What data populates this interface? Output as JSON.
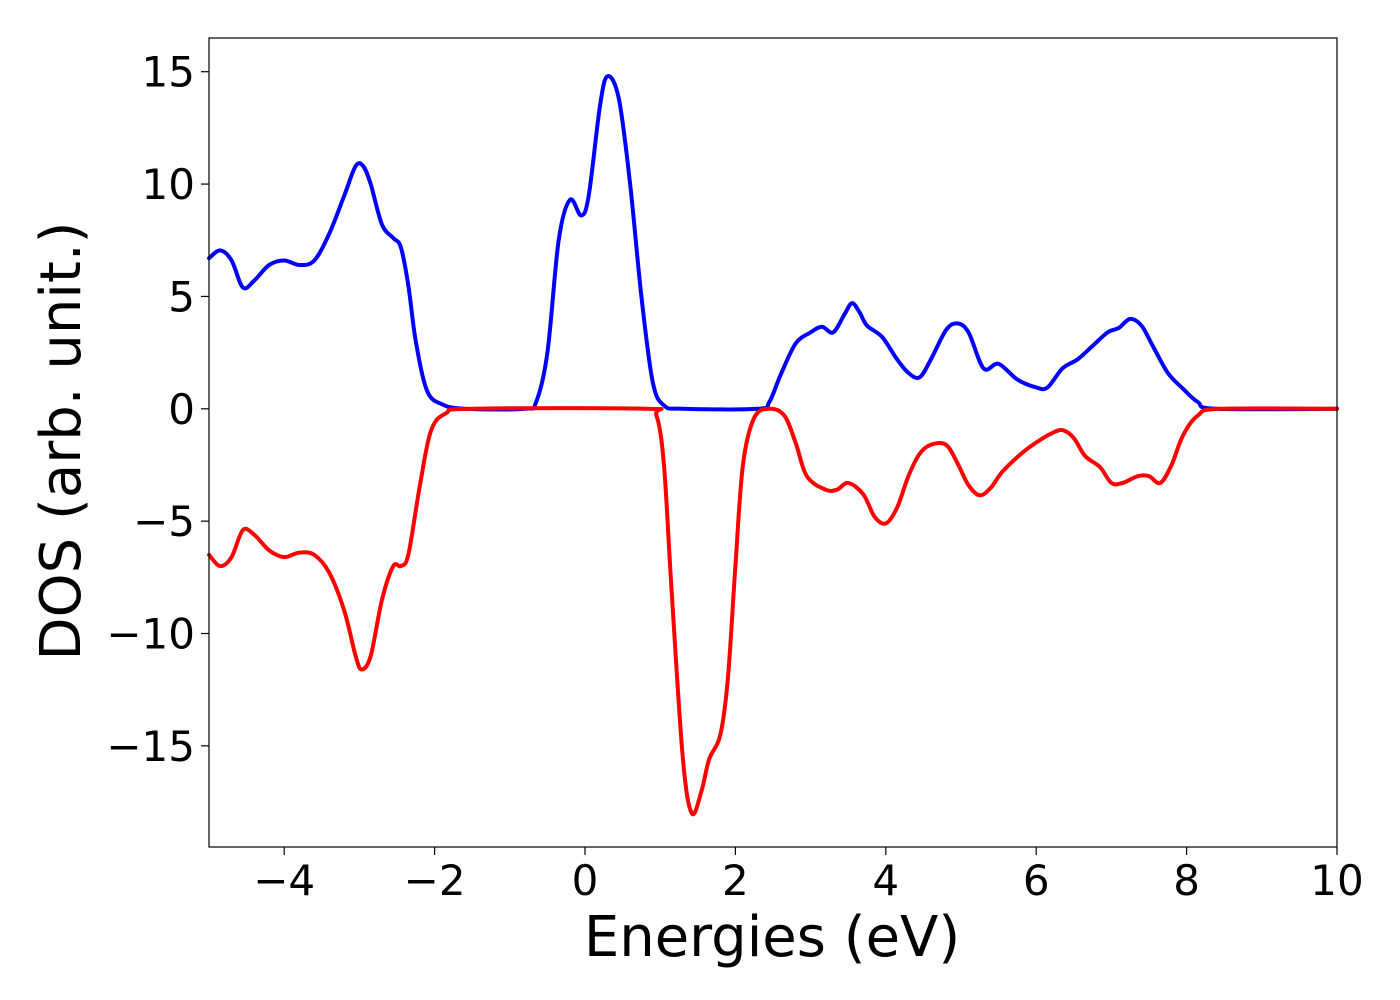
{
  "chart_data": {
    "type": "line",
    "title": "",
    "xlabel": "Energies (eV)",
    "ylabel": "DOS (arb. unit.)",
    "xlim": [
      -5,
      10
    ],
    "ylim": [
      -19.5,
      16.5
    ],
    "grid": false,
    "legend": "none",
    "x_ticks": [
      {
        "value": -4,
        "label": "−4"
      },
      {
        "value": -2,
        "label": "−2"
      },
      {
        "value": 0,
        "label": "0"
      },
      {
        "value": 2,
        "label": "2"
      },
      {
        "value": 4,
        "label": "4"
      },
      {
        "value": 6,
        "label": "6"
      },
      {
        "value": 8,
        "label": "8"
      },
      {
        "value": 10,
        "label": "10"
      }
    ],
    "y_ticks": [
      {
        "value": 15,
        "label": "15"
      },
      {
        "value": 10,
        "label": "10"
      },
      {
        "value": 5,
        "label": "5"
      },
      {
        "value": 0,
        "label": "0"
      },
      {
        "value": -5,
        "label": "−5"
      },
      {
        "value": -10,
        "label": "−10"
      },
      {
        "value": -15,
        "label": "−15"
      }
    ],
    "series": [
      {
        "color": "#0000ff",
        "points": [
          [
            -5.0,
            6.7
          ],
          [
            -4.85,
            7.05
          ],
          [
            -4.7,
            6.6
          ],
          [
            -4.55,
            5.4
          ],
          [
            -4.4,
            5.7
          ],
          [
            -4.2,
            6.4
          ],
          [
            -4.0,
            6.6
          ],
          [
            -3.8,
            6.4
          ],
          [
            -3.6,
            6.6
          ],
          [
            -3.4,
            7.8
          ],
          [
            -3.2,
            9.5
          ],
          [
            -3.05,
            10.8
          ],
          [
            -2.95,
            10.8
          ],
          [
            -2.85,
            10.0
          ],
          [
            -2.7,
            8.2
          ],
          [
            -2.55,
            7.6
          ],
          [
            -2.45,
            7.2
          ],
          [
            -2.35,
            5.5
          ],
          [
            -2.25,
            3.0
          ],
          [
            -2.1,
            0.8
          ],
          [
            -1.9,
            0.2
          ],
          [
            -1.6,
            0.0
          ],
          [
            -0.8,
            0.0
          ],
          [
            -0.65,
            0.3
          ],
          [
            -0.5,
            2.5
          ],
          [
            -0.35,
            7.5
          ],
          [
            -0.2,
            9.3
          ],
          [
            -0.05,
            8.6
          ],
          [
            0.05,
            9.5
          ],
          [
            0.2,
            13.5
          ],
          [
            0.3,
            14.8
          ],
          [
            0.45,
            13.8
          ],
          [
            0.6,
            10.0
          ],
          [
            0.75,
            5.0
          ],
          [
            0.9,
            1.2
          ],
          [
            1.05,
            0.15
          ],
          [
            1.3,
            0.0
          ],
          [
            2.3,
            0.0
          ],
          [
            2.45,
            0.3
          ],
          [
            2.6,
            1.5
          ],
          [
            2.8,
            2.9
          ],
          [
            3.0,
            3.4
          ],
          [
            3.15,
            3.65
          ],
          [
            3.3,
            3.4
          ],
          [
            3.45,
            4.2
          ],
          [
            3.55,
            4.7
          ],
          [
            3.65,
            4.3
          ],
          [
            3.75,
            3.7
          ],
          [
            3.95,
            3.2
          ],
          [
            4.15,
            2.2
          ],
          [
            4.3,
            1.6
          ],
          [
            4.45,
            1.4
          ],
          [
            4.6,
            2.2
          ],
          [
            4.8,
            3.5
          ],
          [
            4.95,
            3.8
          ],
          [
            5.1,
            3.4
          ],
          [
            5.3,
            1.8
          ],
          [
            5.5,
            2.0
          ],
          [
            5.75,
            1.3
          ],
          [
            6.0,
            0.95
          ],
          [
            6.15,
            0.95
          ],
          [
            6.35,
            1.8
          ],
          [
            6.55,
            2.2
          ],
          [
            6.75,
            2.8
          ],
          [
            6.95,
            3.4
          ],
          [
            7.1,
            3.6
          ],
          [
            7.25,
            4.0
          ],
          [
            7.4,
            3.7
          ],
          [
            7.55,
            2.8
          ],
          [
            7.75,
            1.6
          ],
          [
            7.95,
            0.9
          ],
          [
            8.15,
            0.3
          ],
          [
            8.4,
            0.0
          ],
          [
            10.0,
            0.0
          ]
        ]
      },
      {
        "color": "#ff0000",
        "points": [
          [
            -5.0,
            -6.5
          ],
          [
            -4.85,
            -7.0
          ],
          [
            -4.7,
            -6.6
          ],
          [
            -4.55,
            -5.4
          ],
          [
            -4.4,
            -5.6
          ],
          [
            -4.2,
            -6.3
          ],
          [
            -4.0,
            -6.6
          ],
          [
            -3.8,
            -6.4
          ],
          [
            -3.6,
            -6.5
          ],
          [
            -3.4,
            -7.3
          ],
          [
            -3.2,
            -9.0
          ],
          [
            -3.05,
            -11.0
          ],
          [
            -2.97,
            -11.6
          ],
          [
            -2.85,
            -11.0
          ],
          [
            -2.7,
            -8.5
          ],
          [
            -2.55,
            -7.0
          ],
          [
            -2.45,
            -7.0
          ],
          [
            -2.35,
            -6.5
          ],
          [
            -2.2,
            -3.5
          ],
          [
            -2.05,
            -1.0
          ],
          [
            -1.85,
            -0.2
          ],
          [
            -1.5,
            0.0
          ],
          [
            0.8,
            0.0
          ],
          [
            0.95,
            -0.3
          ],
          [
            1.05,
            -2.5
          ],
          [
            1.15,
            -8.0
          ],
          [
            1.3,
            -15.5
          ],
          [
            1.42,
            -18.0
          ],
          [
            1.55,
            -17.0
          ],
          [
            1.65,
            -15.6
          ],
          [
            1.8,
            -14.5
          ],
          [
            1.9,
            -12.0
          ],
          [
            2.0,
            -7.0
          ],
          [
            2.1,
            -2.5
          ],
          [
            2.25,
            -0.4
          ],
          [
            2.45,
            0.0
          ],
          [
            2.65,
            -0.3
          ],
          [
            2.8,
            -1.5
          ],
          [
            2.95,
            -3.0
          ],
          [
            3.2,
            -3.6
          ],
          [
            3.35,
            -3.6
          ],
          [
            3.5,
            -3.3
          ],
          [
            3.7,
            -3.8
          ],
          [
            3.85,
            -4.8
          ],
          [
            4.0,
            -5.1
          ],
          [
            4.15,
            -4.4
          ],
          [
            4.3,
            -3.0
          ],
          [
            4.45,
            -2.0
          ],
          [
            4.6,
            -1.6
          ],
          [
            4.8,
            -1.6
          ],
          [
            4.95,
            -2.4
          ],
          [
            5.1,
            -3.4
          ],
          [
            5.25,
            -3.85
          ],
          [
            5.4,
            -3.5
          ],
          [
            5.55,
            -2.8
          ],
          [
            5.8,
            -2.0
          ],
          [
            6.0,
            -1.5
          ],
          [
            6.2,
            -1.1
          ],
          [
            6.35,
            -0.95
          ],
          [
            6.5,
            -1.3
          ],
          [
            6.65,
            -2.1
          ],
          [
            6.85,
            -2.6
          ],
          [
            7.0,
            -3.3
          ],
          [
            7.15,
            -3.3
          ],
          [
            7.35,
            -3.0
          ],
          [
            7.5,
            -3.0
          ],
          [
            7.65,
            -3.3
          ],
          [
            7.8,
            -2.5
          ],
          [
            7.95,
            -1.2
          ],
          [
            8.15,
            -0.3
          ],
          [
            8.45,
            0.0
          ],
          [
            10.0,
            0.0
          ]
        ]
      }
    ]
  }
}
